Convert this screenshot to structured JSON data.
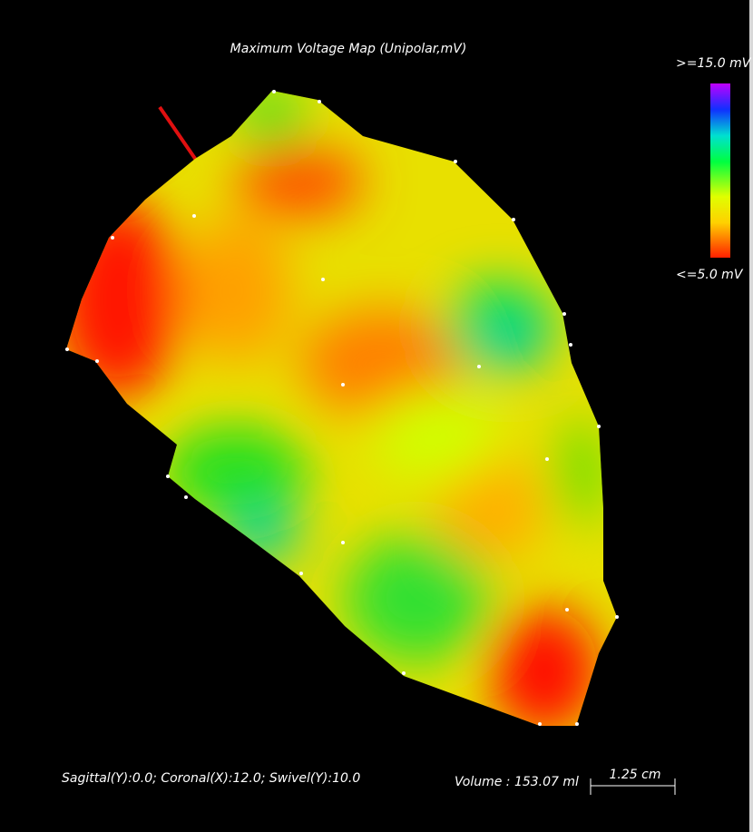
{
  "header": {
    "title": "Maximum Voltage Map (Unipolar,mV)"
  },
  "legend": {
    "max_label": ">=15.0 mV",
    "min_label": "<=5.0 mV"
  },
  "footer": {
    "orientation": "Sagittal(Y):0.0; Coronal(X):12.0; Swivel(Y):10.0",
    "volume": "Volume : 153.07 ml",
    "scale_bar": "1.25 cm"
  }
}
